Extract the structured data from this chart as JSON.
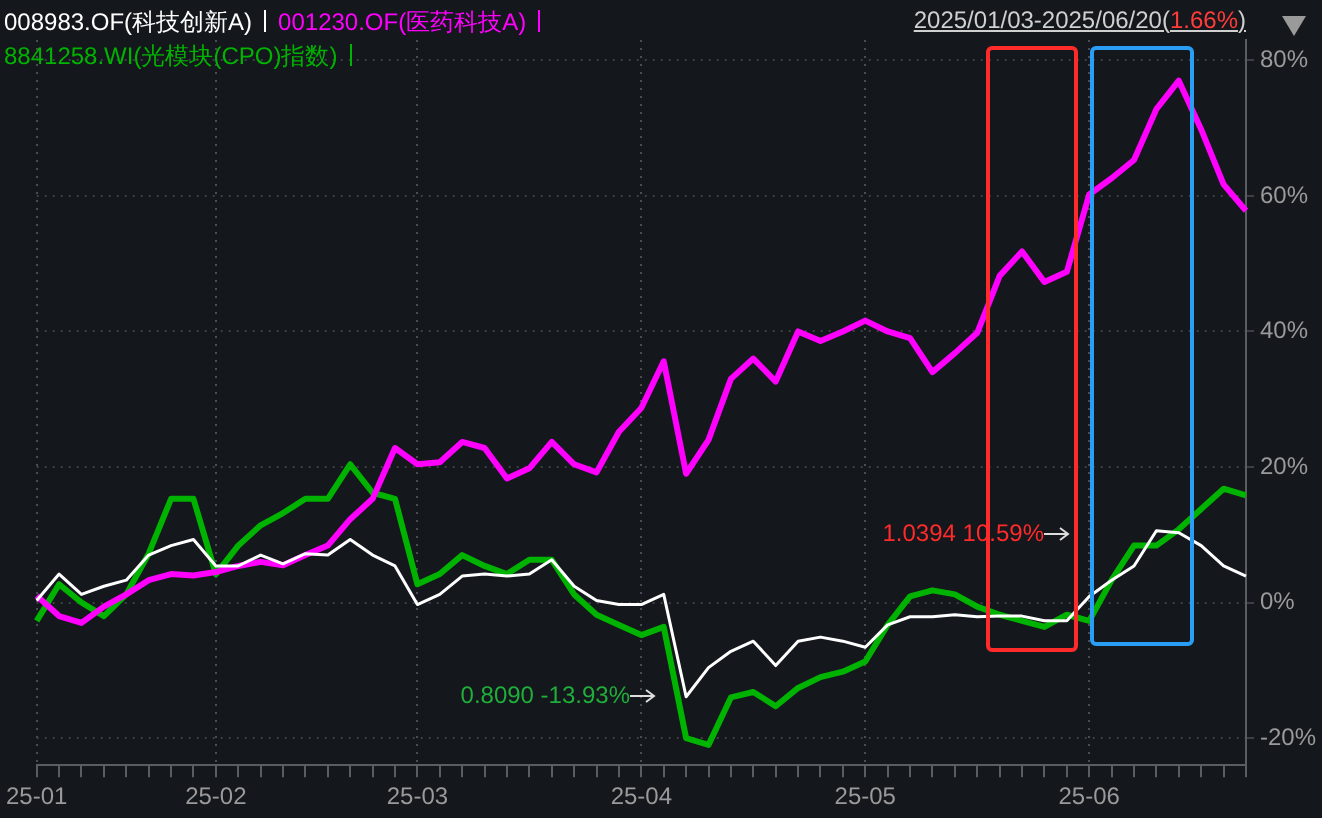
{
  "chart_data": {
    "type": "line",
    "subtitle": "2025/01/03-2025/06/20(1.66%)",
    "categories": [
      "25-01",
      null,
      null,
      null,
      null,
      null,
      null,
      null,
      "25-02",
      null,
      null,
      null,
      null,
      null,
      null,
      null,
      null,
      "25-03",
      null,
      null,
      null,
      null,
      null,
      null,
      null,
      null,
      null,
      "25-04",
      null,
      null,
      null,
      null,
      null,
      null,
      null,
      null,
      null,
      "25-05",
      null,
      null,
      null,
      null,
      null,
      null,
      null,
      null,
      null,
      "25-06",
      null,
      null,
      null,
      null,
      null,
      null,
      null
    ],
    "series": [
      {
        "name": "008983.OF(科技创新A)",
        "color": "#ffffff",
        "values": [
          0.3,
          4.2,
          1.2,
          2.4,
          3.3,
          7,
          8.4,
          9.3,
          5.4,
          5.4,
          7,
          5.7,
          7.2,
          7,
          9.3,
          7,
          5.4,
          -0.3,
          1.2,
          3.9,
          4.2,
          3.9,
          4.2,
          6.3,
          2.4,
          0.3,
          -0.3,
          -0.3,
          1.2,
          -13.9,
          -9.6,
          -7.2,
          -5.7,
          -9.3,
          -5.7,
          -5.1,
          -5.7,
          -6.6,
          -3.3,
          -2.1,
          -2.1,
          -1.8,
          -2.1,
          -2,
          -2,
          -2.7,
          -2.7,
          0.9,
          3.3,
          5.4,
          10.6,
          10.3,
          8.4,
          5.4,
          3.9
        ]
      },
      {
        "name": "001230.OF(医药科技A)",
        "color": "#ff00ff",
        "values": [
          1,
          -2,
          -3,
          -0.6,
          1.2,
          3.3,
          4.2,
          4,
          4.5,
          5.4,
          6,
          5.5,
          7,
          8.4,
          12.3,
          15.3,
          22.8,
          20.4,
          20.7,
          23.7,
          22.8,
          18.3,
          19.8,
          23.7,
          20.4,
          19.2,
          25.2,
          28.7,
          35.6,
          19,
          24,
          33,
          36,
          32.6,
          40,
          38.6,
          40,
          41.6,
          40,
          39,
          34,
          36.8,
          39.8,
          48.2,
          51.8,
          47.3,
          48.8,
          60.2,
          62.6,
          65.3,
          72.8,
          77,
          69.8,
          61.7,
          57.8
        ]
      },
      {
        "name": "8841258.WI(光模块(CPO)指数)",
        "color": "#00b300",
        "values": [
          -2.7,
          2.7,
          0,
          -2,
          1.2,
          7.2,
          15.3,
          15.3,
          4.2,
          8.4,
          11.4,
          13.2,
          15.3,
          15.3,
          20.4,
          16.2,
          15.3,
          2.7,
          4.2,
          7,
          5.4,
          4.2,
          6.3,
          6.3,
          1.2,
          -1.8,
          -3.3,
          -4.8,
          -3.6,
          -20,
          -21,
          -14,
          -13.2,
          -15.3,
          -12.6,
          -11,
          -10.2,
          -8.7,
          -3.3,
          0.9,
          1.8,
          1.2,
          -0.6,
          -1.8,
          -2.7,
          -3.6,
          -1.8,
          -2.7,
          3.3,
          8.4,
          8.4,
          10.8,
          13.8,
          16.8,
          15.8
        ]
      }
    ],
    "ylim": [
      -24,
      83
    ],
    "yticks": [
      {
        "value": -20,
        "label": "-20%"
      },
      {
        "value": 0,
        "label": "0%"
      },
      {
        "value": 20,
        "label": "20%"
      },
      {
        "value": 40,
        "label": "40%"
      },
      {
        "value": 60,
        "label": "60%"
      },
      {
        "value": 80,
        "label": "80%"
      }
    ],
    "annotations": [
      "0.8090 -13.93%",
      "1.0394 10.59%"
    ],
    "grid": true,
    "legend": "top left",
    "marker": "none",
    "line_style": "solid"
  }
}
